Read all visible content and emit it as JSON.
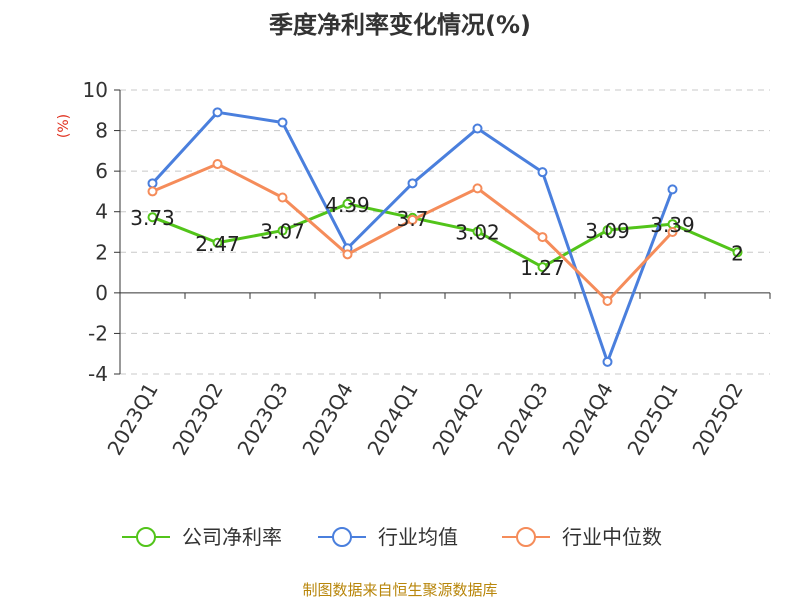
{
  "chart_data": {
    "type": "line",
    "title": "季度净利率变化情况(%)",
    "ylabel": "(%)",
    "xlabel": "",
    "categories": [
      "2023Q1",
      "2023Q2",
      "2023Q3",
      "2023Q4",
      "2024Q1",
      "2024Q2",
      "2024Q3",
      "2024Q4",
      "2025Q1",
      "2025Q2"
    ],
    "ylim": [
      -4,
      10
    ],
    "yticks": [
      -4,
      -2,
      0,
      2,
      4,
      6,
      8,
      10
    ],
    "grid": "horizontal-dashed",
    "legend_position": "bottom",
    "series": [
      {
        "name": "公司净利率",
        "color": "#52c41a",
        "labels": true,
        "values": [
          3.73,
          2.47,
          3.07,
          4.39,
          3.7,
          3.02,
          1.27,
          3.09,
          3.39,
          2
        ]
      },
      {
        "name": "行业均值",
        "color": "#4a7fdd",
        "labels": false,
        "values": [
          5.4,
          8.9,
          8.4,
          2.2,
          5.4,
          8.1,
          5.95,
          -3.4,
          5.1,
          null
        ]
      },
      {
        "name": "行业中位数",
        "color": "#f58c5a",
        "labels": false,
        "values": [
          5.0,
          6.35,
          4.7,
          1.9,
          3.6,
          5.15,
          2.75,
          -0.4,
          3.0,
          null
        ]
      }
    ],
    "source": "制图数据来自恒生聚源数据库"
  }
}
